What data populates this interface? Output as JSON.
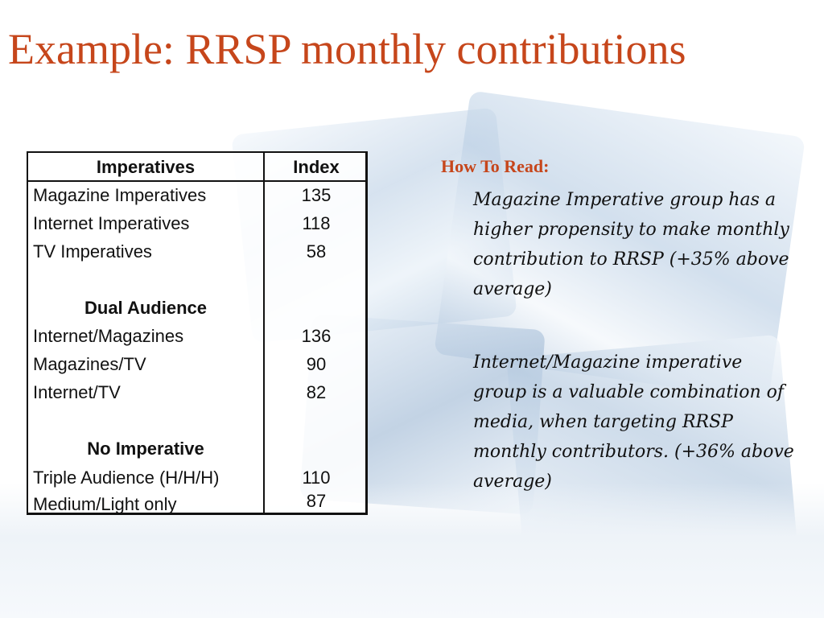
{
  "title": "Example: RRSP monthly contributions",
  "table": {
    "headers": {
      "col1": "Imperatives",
      "col2": "Index"
    },
    "group1": [
      {
        "label": "Magazine Imperatives",
        "value": "135"
      },
      {
        "label": "Internet Imperatives",
        "value": "118"
      },
      {
        "label": "TV Imperatives",
        "value": "58"
      }
    ],
    "group2_title": "Dual Audience",
    "group2": [
      {
        "label": "Internet/Magazines",
        "value": "136"
      },
      {
        "label": "Magazines/TV",
        "value": "90"
      },
      {
        "label": "Internet/TV",
        "value": "82"
      }
    ],
    "group3_title": "No Imperative",
    "group3": [
      {
        "label": "Triple Audience (H/H/H)",
        "value": "110"
      },
      {
        "label": "Medium/Light only",
        "value": "87"
      }
    ]
  },
  "how_to_read": {
    "heading": "How To Read:",
    "note1": "Magazine Imperative group has a higher propensity to make monthly contribution to RRSP (+35% above average)",
    "note2": "Internet/Magazine imperative group is a valuable combination of media, when targeting RRSP monthly contributors. (+36% above average)"
  }
}
